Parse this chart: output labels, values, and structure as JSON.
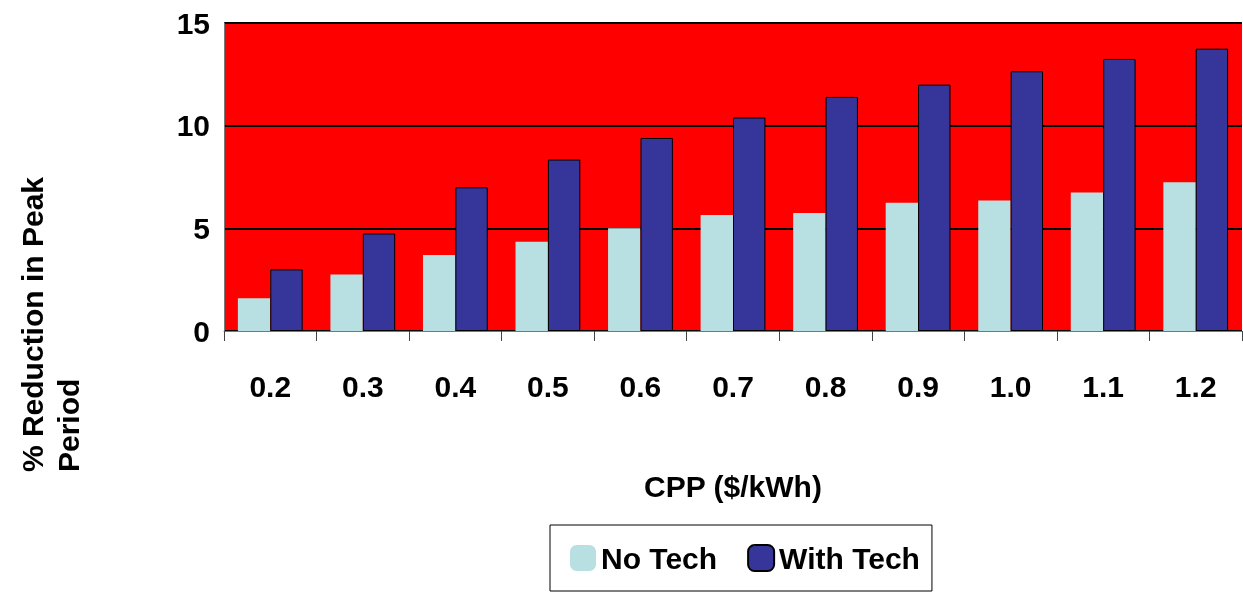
{
  "chart_data": {
    "type": "bar",
    "xlabel": "CPP ($/kWh)",
    "ylabel": "% Reduction in Peak\nPeriod",
    "categories": [
      "0.2",
      "0.3",
      "0.4",
      "0.5",
      "0.6",
      "0.7",
      "0.8",
      "0.9",
      "1.0",
      "1.1",
      "1.2"
    ],
    "series": [
      {
        "name": "No Tech",
        "color": "#b8dfe1",
        "values": [
          1.6,
          2.75,
          3.7,
          4.35,
          5.0,
          5.65,
          5.75,
          6.25,
          6.35,
          6.75,
          7.25
        ]
      },
      {
        "name": "With Tech",
        "color": "#36369a",
        "values": [
          3.0,
          4.75,
          7.0,
          8.35,
          9.4,
          10.4,
          11.4,
          12.0,
          12.65,
          13.25,
          13.75
        ]
      }
    ],
    "ylim": [
      0,
      15
    ],
    "yticks": [
      0,
      5,
      10,
      15
    ],
    "grid": "y",
    "legend": "bottom"
  }
}
